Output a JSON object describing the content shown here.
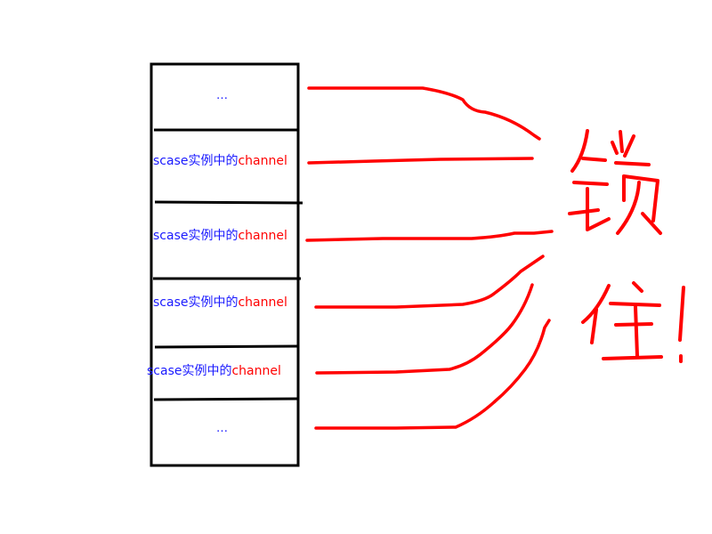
{
  "stack": {
    "top_ellipsis": "…",
    "bottom_ellipsis": "…",
    "rows": [
      {
        "prefix": "scase实例中的",
        "suffix": "channel"
      },
      {
        "prefix": "scase实例中的",
        "suffix": "channel"
      },
      {
        "prefix": "scase实例中的",
        "suffix": "channel"
      },
      {
        "prefix": "scase实例中的",
        "suffix": "channel"
      }
    ]
  },
  "annotation": {
    "line1": "锁",
    "line2": "住!"
  },
  "colors": {
    "box_stroke": "#000000",
    "text_blue": "#1a1aff",
    "text_red": "#ff0000",
    "arrow_red": "#ff0000"
  }
}
